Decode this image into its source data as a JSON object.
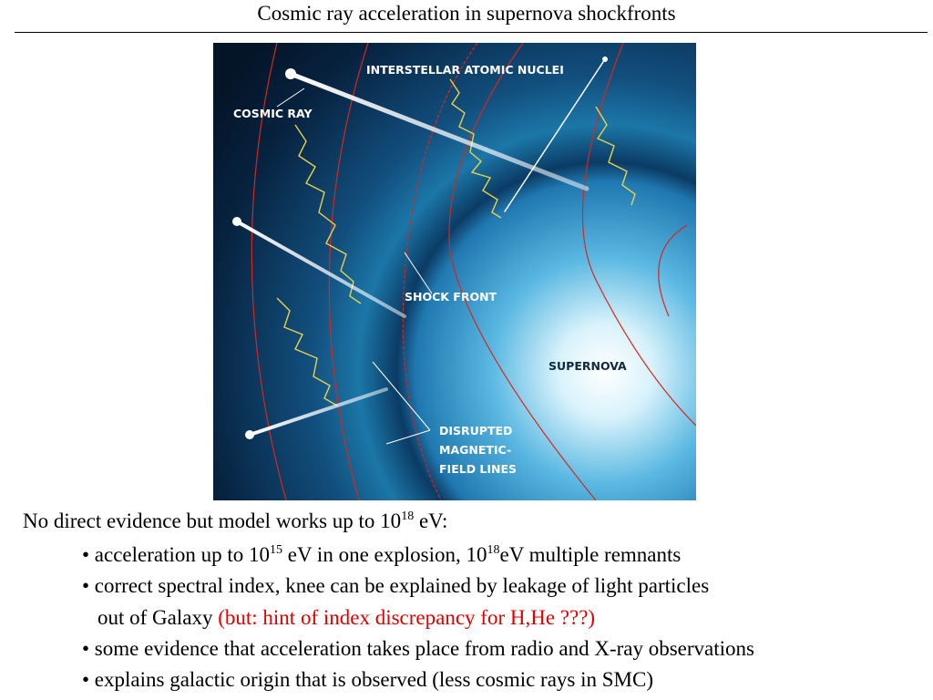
{
  "title": "Cosmic ray acceleration in supernova shockfronts",
  "figure": {
    "labels": [
      {
        "lines": [
          "INTERSTELLAR ATOMIC NUCLEI"
        ]
      },
      {
        "lines": [
          "COSMIC RAY"
        ]
      },
      {
        "lines": [
          "SHOCK FRONT"
        ]
      },
      {
        "lines": [
          "SUPERNOVA"
        ]
      },
      {
        "lines": [
          "DISRUPTED",
          "MAGNETIC-",
          "FIELD LINES"
        ]
      }
    ]
  },
  "body": [
    {
      "segments": [
        {
          "text": "No direct evidence but model works up to 10"
        },
        {
          "text": "18",
          "style": "sup"
        },
        {
          "text": " eV:"
        }
      ]
    },
    {
      "segments": [
        {
          "text": "• acceleration up to 10"
        },
        {
          "text": "15",
          "style": "sup"
        },
        {
          "text": " eV in one explosion, 10"
        },
        {
          "text": "18",
          "style": "sup"
        },
        {
          "text": "eV multiple remnants"
        }
      ]
    },
    {
      "segments": [
        {
          "text": "• correct spectral index, knee can be explained by leakage of light particles"
        }
      ]
    },
    {
      "segments": [
        {
          "text": "out of Galaxy "
        },
        {
          "text": "(but: hint of index discrepancy for H,He ???)",
          "style": "red"
        }
      ]
    },
    {
      "segments": [
        {
          "text": "• some evidence that acceleration takes place from radio and X-ray observations"
        }
      ]
    },
    {
      "segments": [
        {
          "text": "• explains galactic origin that is observed (less cosmic rays in SMC)"
        }
      ]
    }
  ]
}
